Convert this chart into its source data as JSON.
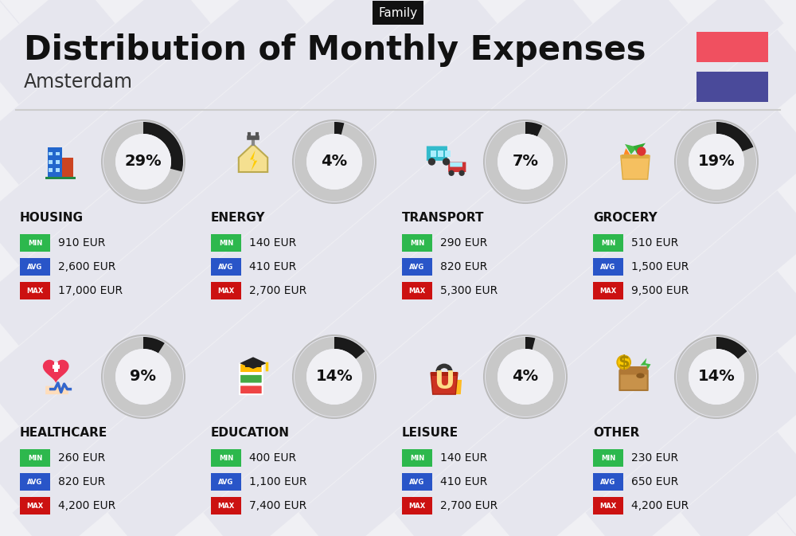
{
  "title": "Distribution of Monthly Expenses",
  "subtitle": "Amsterdam",
  "category_label": "Family",
  "bg_color": "#f0f0f4",
  "flag_red": "#f05060",
  "flag_blue": "#4a4a9a",
  "categories": [
    {
      "name": "HOUSING",
      "pct": 29,
      "min": "910 EUR",
      "avg": "2,600 EUR",
      "max": "17,000 EUR",
      "row": 0,
      "col": 0
    },
    {
      "name": "ENERGY",
      "pct": 4,
      "min": "140 EUR",
      "avg": "410 EUR",
      "max": "2,700 EUR",
      "row": 0,
      "col": 1
    },
    {
      "name": "TRANSPORT",
      "pct": 7,
      "min": "290 EUR",
      "avg": "820 EUR",
      "max": "5,300 EUR",
      "row": 0,
      "col": 2
    },
    {
      "name": "GROCERY",
      "pct": 19,
      "min": "510 EUR",
      "avg": "1,500 EUR",
      "max": "9,500 EUR",
      "row": 0,
      "col": 3
    },
    {
      "name": "HEALTHCARE",
      "pct": 9,
      "min": "260 EUR",
      "avg": "820 EUR",
      "max": "4,200 EUR",
      "row": 1,
      "col": 0
    },
    {
      "name": "EDUCATION",
      "pct": 14,
      "min": "400 EUR",
      "avg": "1,100 EUR",
      "max": "7,400 EUR",
      "row": 1,
      "col": 1
    },
    {
      "name": "LEISURE",
      "pct": 4,
      "min": "140 EUR",
      "avg": "410 EUR",
      "max": "2,700 EUR",
      "row": 1,
      "col": 2
    },
    {
      "name": "OTHER",
      "pct": 14,
      "min": "230 EUR",
      "avg": "650 EUR",
      "max": "4,200 EUR",
      "row": 1,
      "col": 3
    }
  ],
  "min_color": "#2db84d",
  "avg_color": "#2955c8",
  "max_color": "#cc1111",
  "stripe_color": "#dcdce8",
  "donut_bg": "#c8c8c8",
  "donut_fg": "#1a1a1a",
  "title_fontsize": 30,
  "subtitle_fontsize": 17,
  "cat_fontsize": 11,
  "pct_fontsize": 14,
  "badge_label_fontsize": 6,
  "badge_value_fontsize": 10
}
